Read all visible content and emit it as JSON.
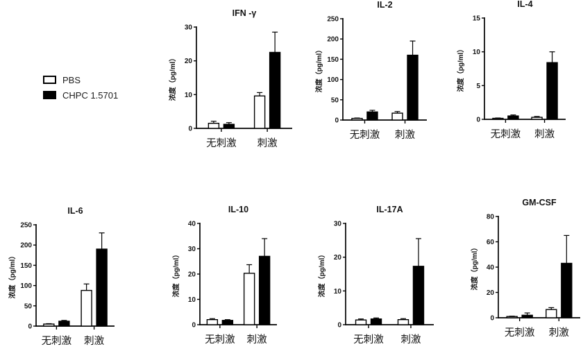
{
  "figure": {
    "background": "#ffffff",
    "axis_color": "#000000"
  },
  "legend": {
    "items": [
      {
        "label": "PBS",
        "fill": "#ffffff"
      },
      {
        "label": "CHPC 1.5701",
        "fill": "#000000"
      }
    ]
  },
  "chart_data": [
    {
      "type": "bar",
      "id": "ifn-gamma",
      "title": "IFN -γ",
      "ylabel": "浓度（pg/ml）",
      "categories": [
        "无刺激",
        "刺激"
      ],
      "ylim": [
        0,
        30
      ],
      "yticks": [
        0,
        10,
        20,
        30
      ],
      "series": [
        {
          "name": "PBS",
          "fill": "#ffffff",
          "values": [
            1.5,
            9.6
          ],
          "errors": [
            0.6,
            1.0
          ]
        },
        {
          "name": "CHPC 1.5701",
          "fill": "#000000",
          "values": [
            1.2,
            22.5
          ],
          "errors": [
            0.5,
            6.0
          ]
        }
      ]
    },
    {
      "type": "bar",
      "id": "il-2",
      "title": "IL-2",
      "ylabel": "浓度（pg/ml）",
      "categories": [
        "无刺激",
        "刺激"
      ],
      "ylim": [
        0,
        250
      ],
      "yticks": [
        0,
        50,
        100,
        150,
        200,
        250
      ],
      "series": [
        {
          "name": "PBS",
          "fill": "#ffffff",
          "values": [
            4,
            17
          ],
          "errors": [
            1,
            4
          ]
        },
        {
          "name": "CHPC 1.5701",
          "fill": "#000000",
          "values": [
            20,
            160
          ],
          "errors": [
            4,
            35
          ]
        }
      ]
    },
    {
      "type": "bar",
      "id": "il-4",
      "title": "IL-4",
      "ylabel": "浓度（pg/ml）",
      "categories": [
        "无刺激",
        "刺激"
      ],
      "ylim": [
        0,
        15
      ],
      "yticks": [
        0,
        5,
        10,
        15
      ],
      "series": [
        {
          "name": "PBS",
          "fill": "#ffffff",
          "values": [
            0.15,
            0.3
          ],
          "errors": [
            0.05,
            0.12
          ]
        },
        {
          "name": "CHPC 1.5701",
          "fill": "#000000",
          "values": [
            0.5,
            8.4
          ],
          "errors": [
            0.15,
            1.6
          ]
        }
      ]
    },
    {
      "type": "bar",
      "id": "il-6",
      "title": "IL-6",
      "ylabel": "浓度（pg/ml）",
      "categories": [
        "无刺激",
        "刺激"
      ],
      "ylim": [
        0,
        250
      ],
      "yticks": [
        0,
        50,
        100,
        150,
        200,
        250
      ],
      "series": [
        {
          "name": "PBS",
          "fill": "#ffffff",
          "values": [
            5,
            88
          ],
          "errors": [
            1,
            16
          ]
        },
        {
          "name": "CHPC 1.5701",
          "fill": "#000000",
          "values": [
            12,
            190
          ],
          "errors": [
            2,
            40
          ]
        }
      ]
    },
    {
      "type": "bar",
      "id": "il-10",
      "title": "IL-10",
      "ylabel": "浓度（pg/ml）",
      "categories": [
        "无刺激",
        "刺激"
      ],
      "ylim": [
        0,
        40
      ],
      "yticks": [
        0,
        10,
        20,
        30,
        40
      ],
      "series": [
        {
          "name": "PBS",
          "fill": "#ffffff",
          "values": [
            2.0,
            20.3
          ],
          "errors": [
            0.4,
            3.4
          ]
        },
        {
          "name": "CHPC 1.5701",
          "fill": "#000000",
          "values": [
            1.7,
            27.0
          ],
          "errors": [
            0.3,
            7.0
          ]
        }
      ]
    },
    {
      "type": "bar",
      "id": "il-17a",
      "title": "IL-17A",
      "ylabel": "浓度（pg/ml）",
      "categories": [
        "无刺激",
        "刺激"
      ],
      "ylim": [
        0,
        30
      ],
      "yticks": [
        0,
        10,
        20,
        30
      ],
      "series": [
        {
          "name": "PBS",
          "fill": "#ffffff",
          "values": [
            1.4,
            1.5
          ],
          "errors": [
            0.3,
            0.3
          ]
        },
        {
          "name": "CHPC 1.5701",
          "fill": "#000000",
          "values": [
            1.7,
            17.3
          ],
          "errors": [
            0.3,
            8.2
          ]
        }
      ]
    },
    {
      "type": "bar",
      "id": "gm-csf",
      "title": "GM-CSF",
      "ylabel": "浓度（pg/ml）",
      "categories": [
        "无刺激",
        "刺激"
      ],
      "ylim": [
        0,
        80
      ],
      "yticks": [
        0,
        20,
        40,
        60,
        80
      ],
      "series": [
        {
          "name": "PBS",
          "fill": "#ffffff",
          "values": [
            1.0,
            6.5
          ],
          "errors": [
            0.3,
            1.5
          ]
        },
        {
          "name": "CHPC 1.5701",
          "fill": "#000000",
          "values": [
            2.0,
            43.0
          ],
          "errors": [
            1.8,
            22.0
          ]
        }
      ]
    }
  ]
}
